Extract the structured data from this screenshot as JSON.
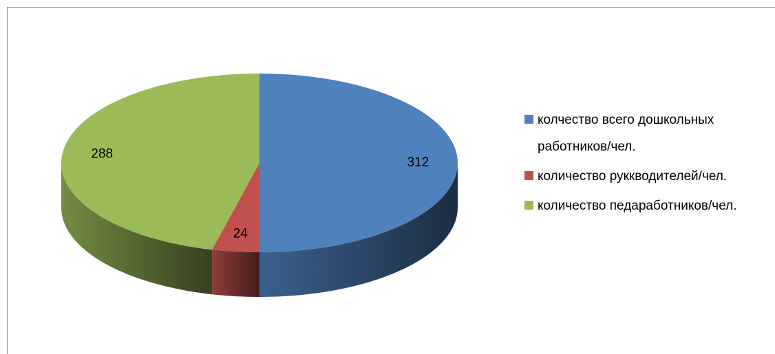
{
  "chart_data": {
    "type": "pie3d",
    "categories": [
      "колчество всего дошкольных работников/чел.",
      "количество руккводителей/чел.",
      "количество педаработников/чел."
    ],
    "values": [
      312,
      24,
      288
    ],
    "colors": [
      "#4f81bd",
      "#c0504d",
      "#9bbb59"
    ],
    "legend": "right"
  }
}
